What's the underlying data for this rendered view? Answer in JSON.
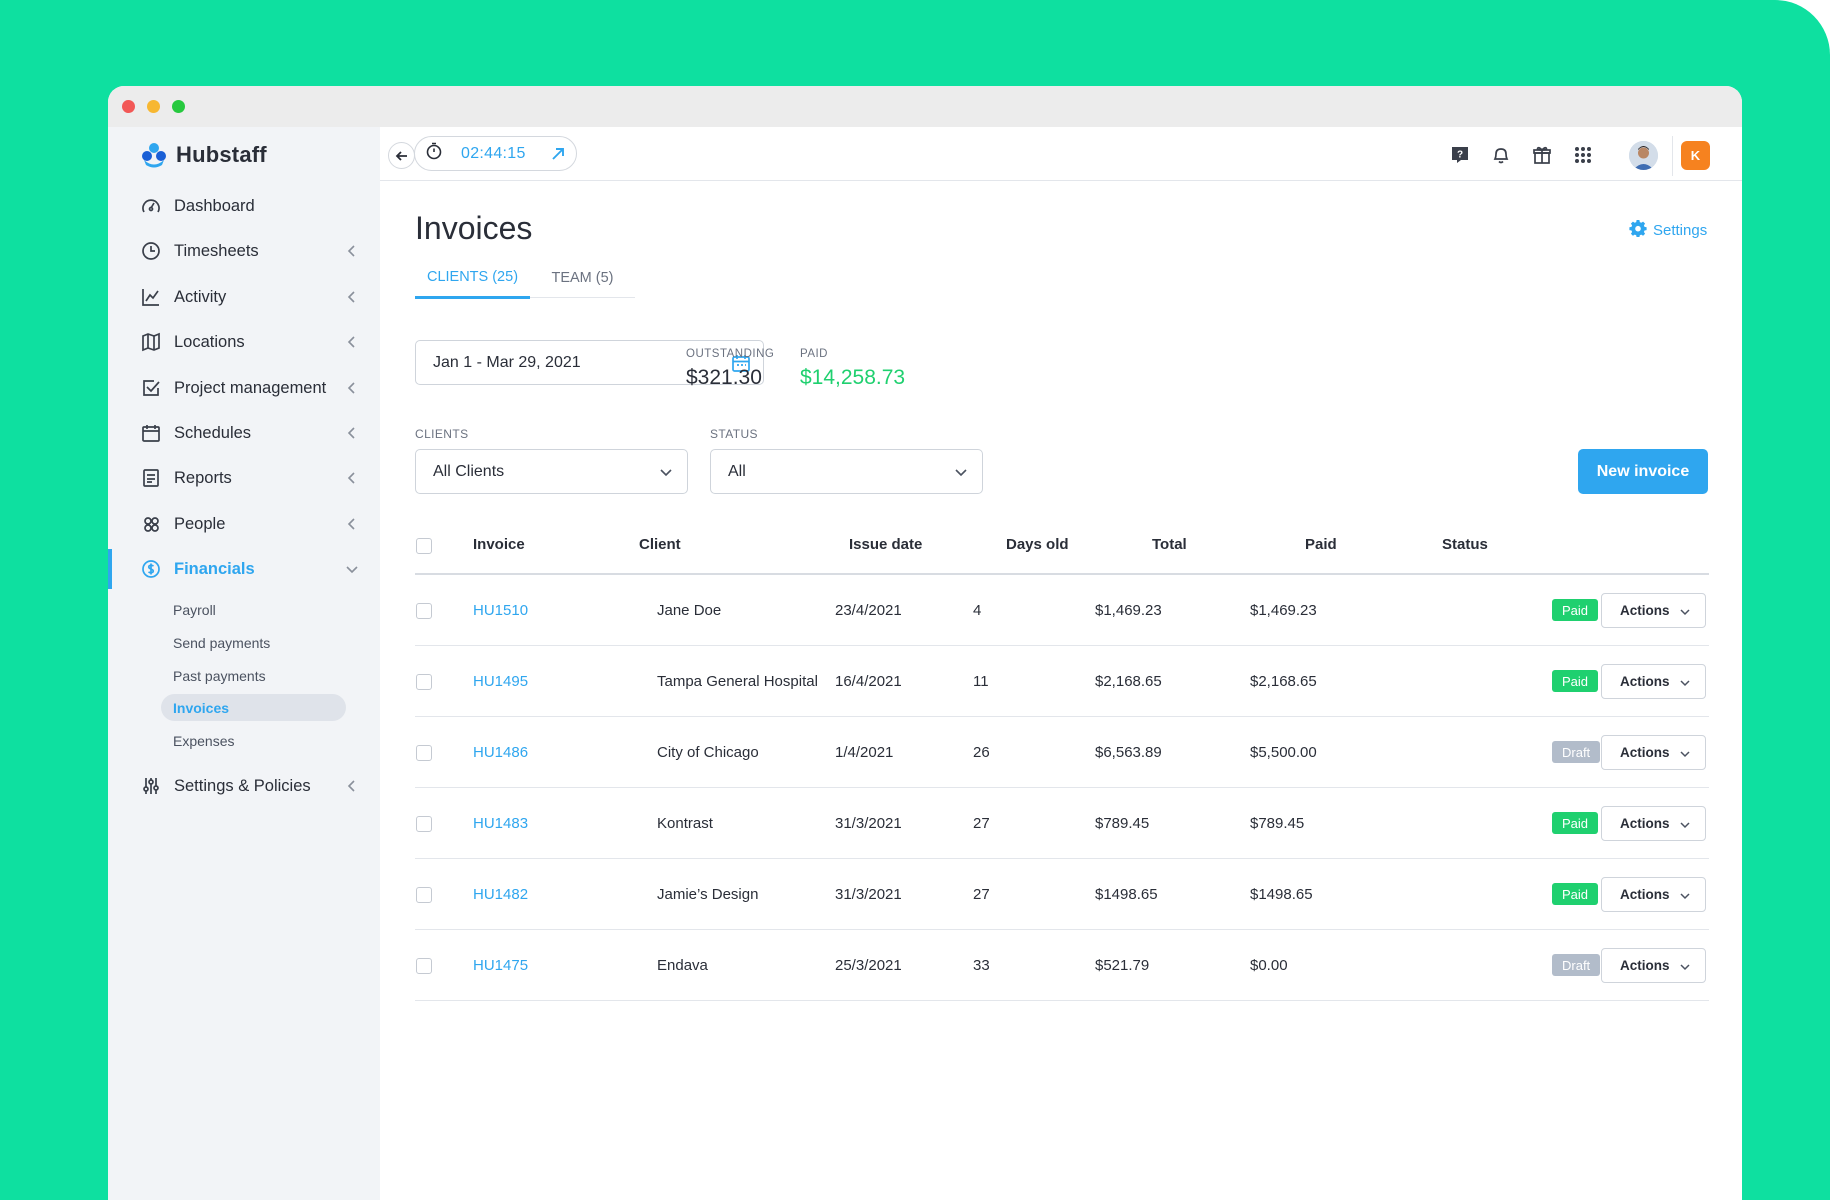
{
  "brand": {
    "name": "Hubstaff",
    "colors": {
      "accent": "#2fa6ef",
      "paid": "#1fd06f",
      "draft": "#b2bcca",
      "background": "#0ee0a0",
      "org": "#f6821f"
    }
  },
  "sidebar": {
    "items": [
      {
        "label": "Dashboard",
        "icon": "dashboard-icon"
      },
      {
        "label": "Timesheets",
        "icon": "clock-icon"
      },
      {
        "label": "Activity",
        "icon": "activity-chart-icon"
      },
      {
        "label": "Locations",
        "icon": "map-icon"
      },
      {
        "label": "Project management",
        "icon": "checkbox-icon"
      },
      {
        "label": "Schedules",
        "icon": "calendar-icon"
      },
      {
        "label": "Reports",
        "icon": "report-icon"
      },
      {
        "label": "People",
        "icon": "people-icon"
      },
      {
        "label": "Financials",
        "icon": "dollar-icon"
      },
      {
        "label": "Settings & Policies",
        "icon": "sliders-icon"
      }
    ],
    "financials_sub": [
      "Payroll",
      "Send payments",
      "Past payments",
      "Invoices",
      "Expenses"
    ]
  },
  "topbar": {
    "timer": "02:44:15",
    "org_initial": "K"
  },
  "page": {
    "title": "Invoices",
    "settings": "Settings",
    "tabs": [
      "CLIENTS (25)",
      "TEAM (5)"
    ]
  },
  "summary": {
    "date_range": "Jan 1 - Mar 29, 2021",
    "outstanding_label": "OUTSTANDING",
    "outstanding_value": "$321.30",
    "paid_label": "PAID",
    "paid_value": "$14,258.73"
  },
  "filters": {
    "clients_label": "CLIENTS",
    "clients_value": "All Clients",
    "status_label": "STATUS",
    "status_value": "All",
    "new_invoice": "New invoice"
  },
  "table": {
    "headers": [
      "Invoice",
      "Client",
      "Issue date",
      "Days old",
      "Total",
      "Paid",
      "Status"
    ],
    "action_label": "Actions",
    "rows": [
      {
        "invoice": "HU1510",
        "client": "Jane Doe",
        "issue_date": "23/4/2021",
        "days_old": "4",
        "total": "$1,469.23",
        "paid": "$1,469.23",
        "status": "Paid"
      },
      {
        "invoice": "HU1495",
        "client": "Tampa General Hospital",
        "issue_date": "16/4/2021",
        "days_old": "11",
        "total": "$2,168.65",
        "paid": "$2,168.65",
        "status": "Paid"
      },
      {
        "invoice": "HU1486",
        "client": "City of Chicago",
        "issue_date": "1/4/2021",
        "days_old": "26",
        "total": "$6,563.89",
        "paid": "$5,500.00",
        "status": "Draft"
      },
      {
        "invoice": "HU1483",
        "client": "Kontrast",
        "issue_date": "31/3/2021",
        "days_old": "27",
        "total": "$789.45",
        "paid": "$789.45",
        "status": "Paid"
      },
      {
        "invoice": "HU1482",
        "client": "Jamie’s Design",
        "issue_date": "31/3/2021",
        "days_old": "27",
        "total": "$1498.65",
        "paid": "$1498.65",
        "status": "Paid"
      },
      {
        "invoice": "HU1475",
        "client": "Endava",
        "issue_date": "25/3/2021",
        "days_old": "33",
        "total": "$521.79",
        "paid": "$0.00",
        "status": "Draft"
      }
    ]
  }
}
